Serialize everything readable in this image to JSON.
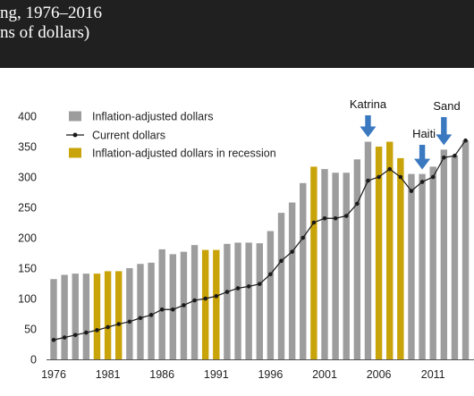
{
  "header": {
    "title_line1": "ng, 1976–2016",
    "title_line2": "ns of dollars)"
  },
  "colors": {
    "header_bg": "#202020",
    "bar_default": "#9d9d9d",
    "bar_recession": "#c9a30a",
    "line": "#1a1a1a",
    "arrow": "#3a78c0"
  },
  "chart_data": {
    "type": "bar",
    "x": [
      1976,
      1977,
      1978,
      1979,
      1980,
      1981,
      1982,
      1983,
      1984,
      1985,
      1986,
      1987,
      1988,
      1989,
      1990,
      1991,
      1992,
      1993,
      1994,
      1995,
      1996,
      1997,
      1998,
      1999,
      2000,
      2001,
      2002,
      2003,
      2004,
      2005,
      2006,
      2007,
      2008,
      2009,
      2010,
      2011,
      2012,
      2013,
      2014
    ],
    "x_ticks": [
      "1976",
      "1981",
      "1986",
      "1991",
      "1996",
      "2001",
      "2006",
      "2011"
    ],
    "y_ticks": [
      "0",
      "50",
      "100",
      "150",
      "200",
      "250",
      "300",
      "350",
      "400"
    ],
    "ylim": [
      0,
      400
    ],
    "series": [
      {
        "name": "Inflation-adjusted dollars",
        "kind": "bar",
        "values": [
          132,
          139,
          141,
          141,
          141,
          145,
          145,
          150,
          157,
          159,
          181,
          173,
          177,
          188,
          180,
          180,
          190,
          192,
          192,
          191,
          211,
          241,
          258,
          290,
          317,
          313,
          307,
          307,
          329,
          358,
          350,
          358,
          331,
          305,
          305,
          317,
          345,
          335,
          360
        ],
        "recession": [
          false,
          false,
          false,
          false,
          true,
          true,
          true,
          false,
          false,
          false,
          false,
          false,
          false,
          false,
          true,
          true,
          false,
          false,
          false,
          false,
          false,
          false,
          false,
          false,
          true,
          false,
          false,
          false,
          false,
          false,
          true,
          true,
          true,
          false,
          false,
          false,
          false,
          false,
          false
        ]
      },
      {
        "name": "Current dollars",
        "kind": "line",
        "values": [
          32,
          36,
          40,
          44,
          48,
          53,
          58,
          62,
          68,
          73,
          82,
          82,
          89,
          97,
          100,
          104,
          111,
          117,
          120,
          124,
          140,
          162,
          177,
          200,
          225,
          232,
          232,
          236,
          256,
          294,
          300,
          313,
          300,
          277,
          292,
          300,
          332,
          335,
          360
        ]
      }
    ],
    "legend": [
      {
        "label": "Inflation-adjusted dollars",
        "type": "bar",
        "color": "#9d9d9d"
      },
      {
        "label": "Current dollars",
        "type": "line",
        "color": "#1a1a1a"
      },
      {
        "label": "Inflation-adjusted dollars in recession",
        "type": "bar",
        "color": "#c9a30a"
      }
    ],
    "legend_position": "top-left",
    "annotations": [
      {
        "label": "Katrina",
        "x": 2005
      },
      {
        "label": "Haiti",
        "x": 2010
      },
      {
        "label": "Sand",
        "x": 2012
      }
    ],
    "grid": false
  }
}
